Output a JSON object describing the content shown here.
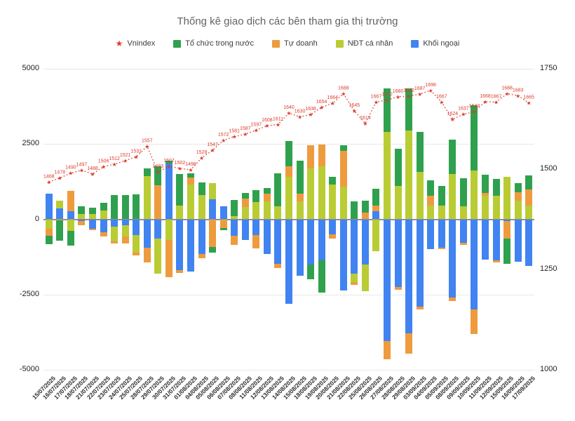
{
  "title": "Thống kê giao dịch các bên tham gia thị trường",
  "legend": [
    {
      "label": "Vnindex",
      "marker": "star",
      "color": "#dc3a2a"
    },
    {
      "label": "Tổ chức trong nước",
      "marker": "square",
      "color": "#2fa14e"
    },
    {
      "label": "Tự doanh",
      "marker": "square",
      "color": "#ee9b3e"
    },
    {
      "label": "NĐT cá nhân",
      "marker": "square",
      "color": "#b9cc33"
    },
    {
      "label": "Khối ngoại",
      "marker": "square",
      "color": "#4183f1"
    }
  ],
  "chart_data": {
    "type": "bar",
    "subtype": "stacked-columns-with-line-overlay",
    "grid": true,
    "legend_position": "top",
    "categories": [
      "15/07/2025",
      "16/07/2025",
      "17/07/2025",
      "18/07/2025",
      "21/07/2025",
      "22/07/2025",
      "23/07/2025",
      "24/07/2025",
      "25/07/2025",
      "28/07/2025",
      "29/07/2025",
      "30/07/2025",
      "31/07/2025",
      "01/08/2025",
      "04/08/2025",
      "05/08/2025",
      "06/08/2025",
      "07/08/2025",
      "08/08/2025",
      "11/08/2025",
      "12/08/2025",
      "13/08/2025",
      "14/08/2025",
      "15/08/2025",
      "18/08/2025",
      "19/08/2025",
      "20/08/2025",
      "21/08/2025",
      "22/08/2025",
      "25/08/2025",
      "26/08/2025",
      "27/08/2025",
      "28/08/2025",
      "29/08/2025",
      "03/09/2025",
      "04/09/2025",
      "05/09/2025",
      "08/09/2025",
      "09/09/2025",
      "10/09/2025",
      "11/09/2025",
      "12/09/2025",
      "15/09/2025",
      "16/09/2025",
      "17/09/2025"
    ],
    "stack_order_from_axis": [
      "Khối ngoại",
      "NĐT cá nhân",
      "Tự doanh",
      "Tổ chức trong nước"
    ],
    "series": [
      {
        "name": "Tổ chức trong nước",
        "color": "#2fa14e",
        "values": [
          -280,
          -670,
          -500,
          260,
          215,
          250,
          800,
          810,
          820,
          250,
          650,
          100,
          1040,
          150,
          420,
          -200,
          -60,
          550,
          200,
          400,
          200,
          1080,
          840,
          1100,
          -500,
          -1080,
          240,
          170,
          600,
          400,
          560,
          1450,
          1240,
          1400,
          1320,
          520,
          640,
          1150,
          950,
          2160,
          600,
          560,
          -840,
          300,
          480
        ]
      },
      {
        "name": "Tự doanh",
        "color": "#ee9b3e",
        "values": [
          -230,
          -40,
          680,
          -140,
          -30,
          -150,
          -60,
          -250,
          -100,
          -480,
          1120,
          -1230,
          -100,
          230,
          -150,
          -910,
          -260,
          -300,
          280,
          -440,
          240,
          -150,
          360,
          240,
          750,
          720,
          -150,
          1200,
          -100,
          220,
          200,
          -600,
          -80,
          -680,
          -100,
          320,
          -60,
          -120,
          -80,
          -800,
          100,
          -60,
          -580,
          280,
          520
        ]
      },
      {
        "name": "NĐT cá nhân",
        "color": "#b9cc33",
        "values": [
          -320,
          250,
          -380,
          175,
          170,
          290,
          -500,
          -360,
          -590,
          1430,
          -1150,
          -690,
          460,
          1150,
          810,
          515,
          -30,
          100,
          400,
          560,
          600,
          440,
          1400,
          600,
          1700,
          1760,
          1160,
          1080,
          -280,
          -900,
          -1050,
          2900,
          1100,
          2950,
          1580,
          460,
          460,
          1500,
          420,
          1620,
          780,
          780,
          1400,
          620,
          460
        ]
      },
      {
        "name": "Khối ngoại",
        "color": "#4183f1",
        "values": [
          850,
          360,
          270,
          -60,
          -320,
          -420,
          -240,
          -200,
          -520,
          -950,
          -650,
          1850,
          -1690,
          -1730,
          -1150,
          675,
          440,
          -550,
          -680,
          -520,
          -1150,
          -1480,
          -2800,
          -1880,
          -1500,
          -1360,
          -500,
          -2360,
          -1800,
          -1500,
          265,
          -4050,
          -2260,
          -3780,
          -2900,
          -980,
          -940,
          -2600,
          -780,
          -3000,
          -1340,
          -1370,
          -60,
          -1420,
          -1540
        ]
      }
    ],
    "line": {
      "name": "Vnindex",
      "color": "#dc3a2a",
      "marker": "star",
      "style": "dotted",
      "values": [
        1468,
        1478,
        1490,
        1497,
        1488,
        1506,
        1512,
        1521,
        1531,
        1557,
        1493,
        1507,
        1502,
        1498,
        1528,
        1547,
        1572,
        1581,
        1587,
        1597,
        1608,
        1611,
        1640,
        1630,
        1636,
        1654,
        1664,
        1688,
        1645,
        1614,
        1667,
        1672,
        1680,
        1682,
        1687,
        1696,
        1667,
        1624,
        1637,
        1643,
        1668,
        1667,
        1688,
        1683,
        1665
      ]
    },
    "left_axis": {
      "min": -5000,
      "max": 5000,
      "ticks": [
        5000,
        2500,
        0,
        -2500,
        -5000
      ]
    },
    "right_axis": {
      "min": 1000,
      "max": 1750,
      "ticks": [
        1750,
        1500,
        1250,
        1000
      ]
    }
  }
}
